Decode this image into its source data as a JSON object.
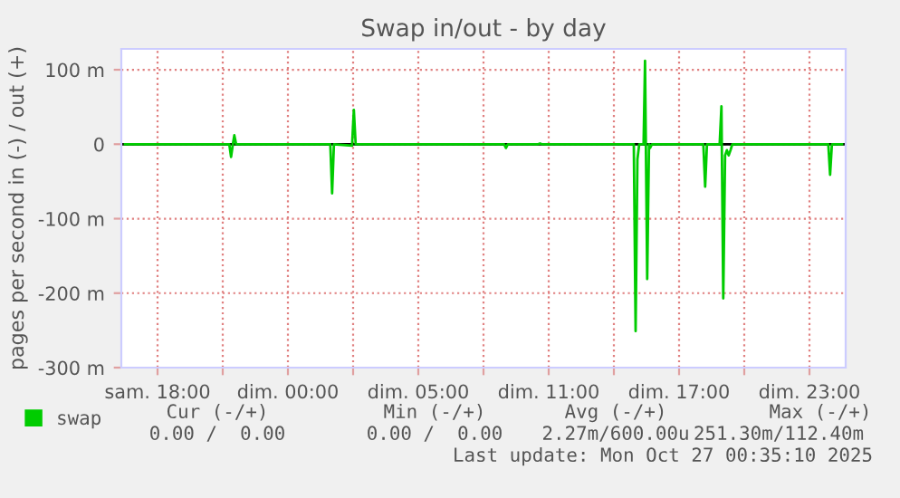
{
  "chart_data": {
    "type": "line",
    "title": "Swap in/out - by day",
    "ylabel": "pages per second in (-) / out (+)",
    "x": [
      "2025-10-25T14:30",
      "2025-10-25T19:18",
      "2025-10-25T19:23",
      "2025-10-25T19:28",
      "2025-10-25T19:32",
      "2025-10-25T19:37",
      "2025-10-25T23:57",
      "2025-10-26T00:02",
      "2025-10-26T00:07",
      "2025-10-26T00:57",
      "2025-10-26T01:02",
      "2025-10-26T01:07",
      "2025-10-26T07:57",
      "2025-10-26T08:02",
      "2025-10-26T08:07",
      "2025-10-26T09:31",
      "2025-10-26T09:36",
      "2025-10-26T09:41",
      "2025-10-26T13:55",
      "2025-10-26T14:00",
      "2025-10-26T14:05",
      "2025-10-26T14:10",
      "2025-10-26T14:22",
      "2025-10-26T14:26",
      "2025-10-26T14:32",
      "2025-10-26T14:37",
      "2025-10-26T14:40",
      "2025-10-26T14:45",
      "2025-10-26T17:07",
      "2025-10-26T17:12",
      "2025-10-26T17:17",
      "2025-10-26T17:52",
      "2025-10-26T17:57",
      "2025-10-26T18:02",
      "2025-10-26T18:07",
      "2025-10-26T18:12",
      "2025-10-26T18:17",
      "2025-10-26T18:22",
      "2025-10-26T18:27",
      "2025-10-26T22:52",
      "2025-10-26T22:57",
      "2025-10-26T23:02",
      "2025-10-26T23:30"
    ],
    "series": [
      {
        "name": "swap",
        "color": "#00cc00",
        "values": [
          0,
          0,
          -17,
          0,
          12,
          0,
          0,
          -66,
          0,
          -2,
          46,
          0,
          0,
          -5,
          0,
          0,
          1,
          0,
          0,
          -251,
          -20,
          0,
          0,
          112,
          -181,
          0,
          -5,
          0,
          0,
          -57,
          0,
          0,
          51,
          -207,
          -15,
          -8,
          -15,
          -8,
          0,
          0,
          -41,
          0,
          0
        ]
      }
    ],
    "xlim": [
      "2025-10-25T14:20",
      "2025-10-26T23:40"
    ],
    "xticks": [
      {
        "value": "2025-10-25T16:00",
        "label": "sam. 18:00"
      },
      {
        "value": "2025-10-25T19:00",
        "label": null
      },
      {
        "value": "2025-10-25T22:00",
        "label": "dim. 00:00"
      },
      {
        "value": "2025-10-26T01:00",
        "label": null
      },
      {
        "value": "2025-10-26T04:00",
        "label": "dim. 05:00"
      },
      {
        "value": "2025-10-26T07:00",
        "label": null
      },
      {
        "value": "2025-10-26T10:00",
        "label": "dim. 11:00"
      },
      {
        "value": "2025-10-26T13:00",
        "label": null
      },
      {
        "value": "2025-10-26T16:00",
        "label": "dim. 17:00"
      },
      {
        "value": "2025-10-26T19:00",
        "label": null
      },
      {
        "value": "2025-10-26T22:00",
        "label": "dim. 23:00"
      }
    ],
    "ylim": [
      -300,
      128
    ],
    "yticks": [
      {
        "value": -300,
        "label": "-300 m"
      },
      {
        "value": -200,
        "label": "-200 m"
      },
      {
        "value": -100,
        "label": "-100 m"
      },
      0,
      {
        "value": 100,
        "label": "100 m"
      }
    ],
    "ref_lines": [
      {
        "axis": "y",
        "value": 0,
        "color": "#000000"
      }
    ],
    "grid": true,
    "legend": "bottom left",
    "marker": "none",
    "line_style": "solid",
    "annotations": [
      "Cur (-/+)",
      "Min (-/+)",
      "Avg (-/+)",
      "Max (-/+)",
      "0.00 /  0.00",
      "0.00 /  0.00",
      "2.27m/600.00u",
      "251.30m/112.40m",
      "Last update: Mon Oct 27 00:35:10 2025"
    ]
  }
}
